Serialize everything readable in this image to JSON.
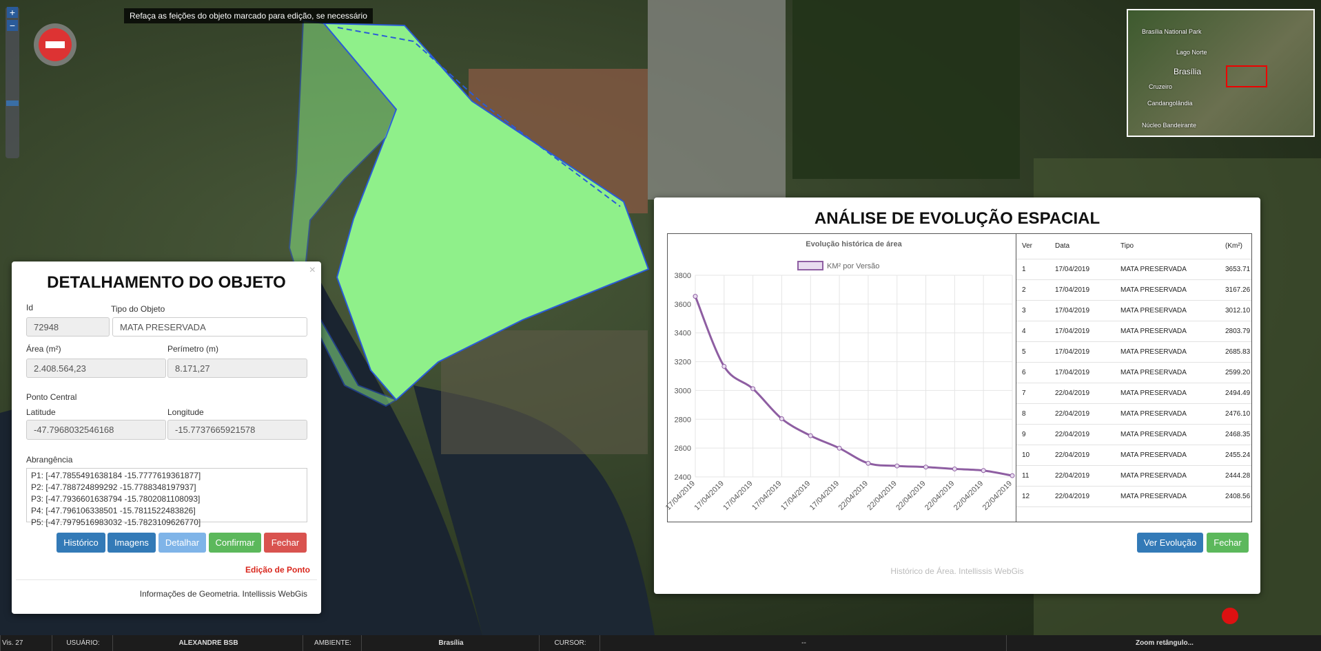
{
  "map": {
    "hint": "Refaça as feições do objeto marcado para edição, se necessário",
    "zoom_in": "+",
    "zoom_out": "−"
  },
  "minimap": {
    "labels": [
      "Brasília National Park",
      "Lago Norte",
      "Brasília",
      "Cruzeiro",
      "Candangolândia",
      "Núcleo Bandeirante"
    ]
  },
  "detail": {
    "title": "DETALHAMENTO DO OBJETO",
    "close": "×",
    "id_label": "Id",
    "id_value": "72948",
    "type_label": "Tipo do Objeto",
    "type_value": "MATA PRESERVADA",
    "area_label": "Área (m²)",
    "area_value": "2.408.564,23",
    "perimeter_label": "Perímetro (m)",
    "perimeter_value": "8.171,27",
    "center_label": "Ponto Central",
    "lat_label": "Latitude",
    "lat_value": "-47.7968032546168",
    "lon_label": "Longitude",
    "lon_value": "-15.7737665921578",
    "extent_label": "Abrangência",
    "extent_lines": [
      "P1: [-47.7855491638184 -15.7777619361877]",
      "P2: [-47.788724899292 -15.7788348197937]",
      "P3: [-47.7936601638794 -15.7802081108093]",
      "P4: [-47.796106338501 -15.7811522483826]",
      "P5: [-47.7979516983032 -15.7823109626770]"
    ],
    "buttons": [
      "Histórico",
      "Imagens",
      "Detalhar",
      "Confirmar",
      "Fechar"
    ],
    "edit_label": "Edição de Ponto",
    "footer": "Informações de Geometria. Intellissis WebGis"
  },
  "analysis": {
    "title": "ANÁLISE DE EVOLUÇÃO ESPACIAL",
    "headers": [
      "Ver",
      "Data",
      "Tipo",
      "(Km²)"
    ],
    "rows": [
      [
        "1",
        "17/04/2019",
        "MATA PRESERVADA",
        "3653.71"
      ],
      [
        "2",
        "17/04/2019",
        "MATA PRESERVADA",
        "3167.26"
      ],
      [
        "3",
        "17/04/2019",
        "MATA PRESERVADA",
        "3012.10"
      ],
      [
        "4",
        "17/04/2019",
        "MATA PRESERVADA",
        "2803.79"
      ],
      [
        "5",
        "17/04/2019",
        "MATA PRESERVADA",
        "2685.83"
      ],
      [
        "6",
        "17/04/2019",
        "MATA PRESERVADA",
        "2599.20"
      ],
      [
        "7",
        "22/04/2019",
        "MATA PRESERVADA",
        "2494.49"
      ],
      [
        "8",
        "22/04/2019",
        "MATA PRESERVADA",
        "2476.10"
      ],
      [
        "9",
        "22/04/2019",
        "MATA PRESERVADA",
        "2468.35"
      ],
      [
        "10",
        "22/04/2019",
        "MATA PRESERVADA",
        "2455.24"
      ],
      [
        "11",
        "22/04/2019",
        "MATA PRESERVADA",
        "2444.28"
      ],
      [
        "12",
        "22/04/2019",
        "MATA PRESERVADA",
        "2408.56"
      ]
    ],
    "buttons": [
      "Ver Evolução",
      "Fechar"
    ],
    "footer": "Histórico de Área. Intellissis WebGis"
  },
  "chart_data": {
    "type": "line",
    "title": "Evolução histórica de área",
    "categories": [
      "17/04/2019",
      "17/04/2019",
      "17/04/2019",
      "17/04/2019",
      "17/04/2019",
      "17/04/2019",
      "22/04/2019",
      "22/04/2019",
      "22/04/2019",
      "22/04/2019",
      "22/04/2019",
      "22/04/2019"
    ],
    "series": [
      {
        "name": "KM² por Versão",
        "color": "#8e5ea2",
        "values": [
          3653.71,
          3167.26,
          3012.1,
          2803.79,
          2685.83,
          2599.2,
          2494.49,
          2476.1,
          2468.35,
          2455.24,
          2444.28,
          2408.56
        ]
      }
    ],
    "ylim": [
      2400,
      3800
    ],
    "yticks": [
      2400,
      2600,
      2800,
      3000,
      3200,
      3400,
      3600,
      3800
    ],
    "grid": true,
    "legend": "top"
  },
  "status": [
    "Vis. 27",
    "USUÁRIO:",
    "ALEXANDRE BSB",
    "AMBIENTE:",
    "Brasília",
    "CURSOR:",
    "--",
    "Zoom retângulo..."
  ]
}
